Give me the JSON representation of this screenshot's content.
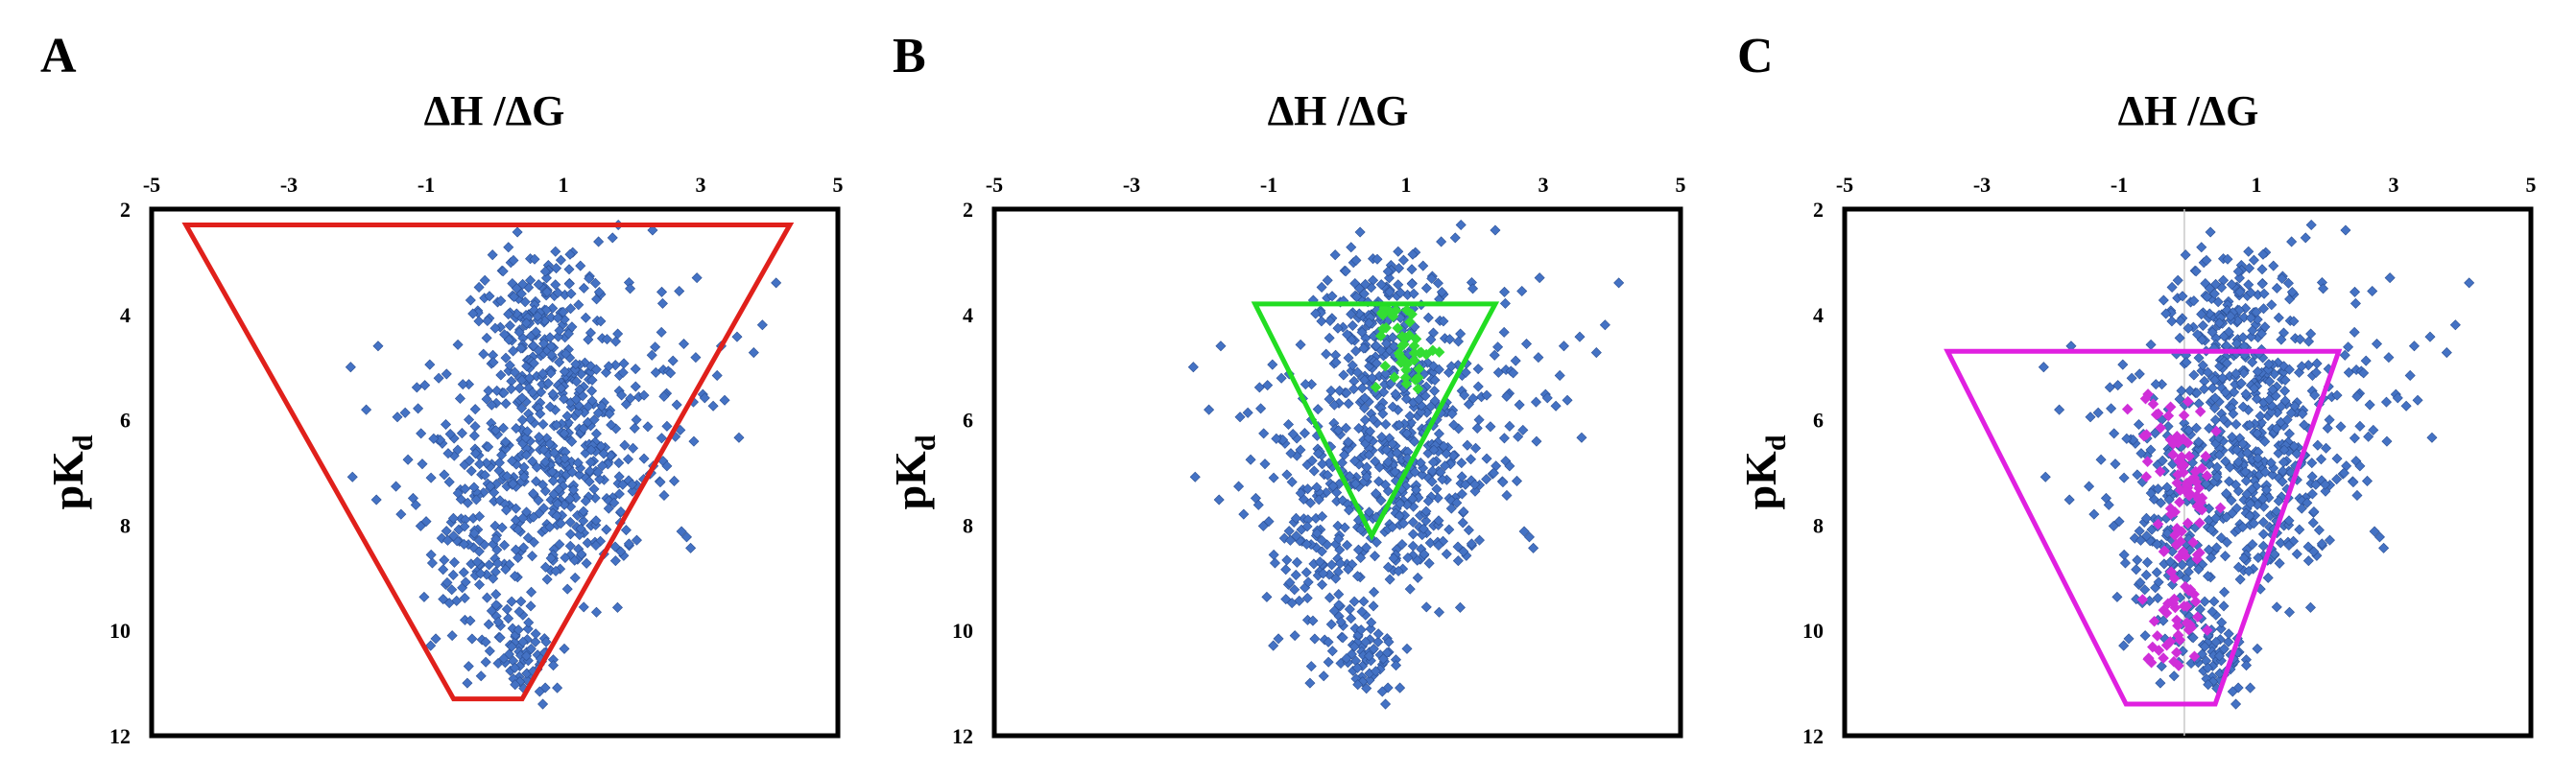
{
  "colors": {
    "points": "#4472C4",
    "panel_a_region": "#E0201B",
    "panel_b_region": "#22DD22",
    "panel_b_points": "#33DD33",
    "panel_c_region": "#E020E0",
    "panel_c_points": "#D02FD8"
  },
  "chart_data": [
    {
      "type": "scatter",
      "panel_label": "A",
      "xlabel": "ΔH /ΔG",
      "ylabel_main": "pK",
      "ylabel_sub": "d",
      "xlim": [
        -5,
        5
      ],
      "ylim": [
        2,
        12
      ],
      "y_inverted": true,
      "x_axis_position": "top",
      "x_ticks": [
        "-5",
        "-3",
        "-1",
        "1",
        "3",
        "5"
      ],
      "y_ticks": [
        "2",
        "4",
        "6",
        "8",
        "10",
        "12"
      ],
      "region": {
        "shape": "trapezoid",
        "points": [
          [
            -4.5,
            2.3
          ],
          [
            4.3,
            2.3
          ],
          [
            0.4,
            11.3
          ],
          [
            -0.6,
            11.3
          ]
        ]
      },
      "highlight_cluster": null
    },
    {
      "type": "scatter",
      "panel_label": "B",
      "xlabel": "ΔH /ΔG",
      "ylabel_main": "pK",
      "ylabel_sub": "d",
      "xlim": [
        -5,
        5
      ],
      "ylim": [
        2,
        12
      ],
      "y_inverted": true,
      "x_axis_position": "top",
      "x_ticks": [
        "-5",
        "-3",
        "-1",
        "1",
        "3",
        "5"
      ],
      "y_ticks": [
        "2",
        "4",
        "6",
        "8",
        "10",
        "12"
      ],
      "region": {
        "shape": "triangle",
        "points": [
          [
            -1.2,
            3.8
          ],
          [
            2.3,
            3.8
          ],
          [
            0.5,
            8.2
          ]
        ]
      },
      "highlight_cluster": {
        "x_range": [
          0.2,
          1.3
        ],
        "y_range": [
          3.8,
          5.5
        ]
      }
    },
    {
      "type": "scatter",
      "panel_label": "C",
      "xlabel": "ΔH /ΔG",
      "ylabel_main": "pK",
      "ylabel_sub": "d",
      "xlim": [
        -5,
        5
      ],
      "ylim": [
        2,
        12
      ],
      "y_inverted": true,
      "x_axis_position": "top",
      "x_ticks": [
        "-5",
        "-3",
        "-1",
        "1",
        "3",
        "5"
      ],
      "y_ticks": [
        "2",
        "4",
        "6",
        "8",
        "10",
        "12"
      ],
      "region": {
        "shape": "trapezoid",
        "points": [
          [
            -3.5,
            4.7
          ],
          [
            2.2,
            4.7
          ],
          [
            0.4,
            11.4
          ],
          [
            -0.9,
            11.4
          ]
        ]
      },
      "highlight_cluster": {
        "x_range": [
          -1.2,
          0.4
        ],
        "y_range": [
          5.5,
          10.8
        ]
      }
    }
  ]
}
